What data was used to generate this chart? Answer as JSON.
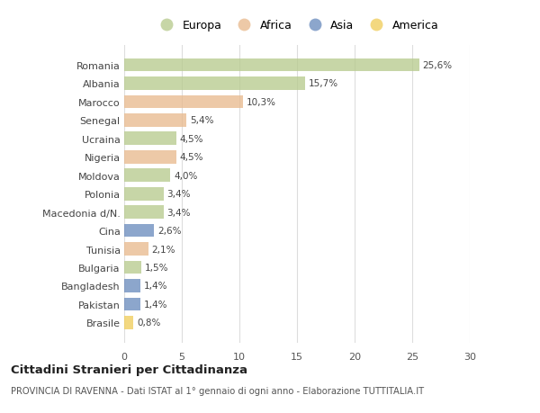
{
  "countries": [
    "Romania",
    "Albania",
    "Marocco",
    "Senegal",
    "Ucraina",
    "Nigeria",
    "Moldova",
    "Polonia",
    "Macedonia d/N.",
    "Cina",
    "Tunisia",
    "Bulgaria",
    "Bangladesh",
    "Pakistan",
    "Brasile"
  ],
  "values": [
    25.6,
    15.7,
    10.3,
    5.4,
    4.5,
    4.5,
    4.0,
    3.4,
    3.4,
    2.6,
    2.1,
    1.5,
    1.4,
    1.4,
    0.8
  ],
  "labels": [
    "25,6%",
    "15,7%",
    "10,3%",
    "5,4%",
    "4,5%",
    "4,5%",
    "4,0%",
    "3,4%",
    "3,4%",
    "2,6%",
    "2,1%",
    "1,5%",
    "1,4%",
    "1,4%",
    "0,8%"
  ],
  "regions": [
    "Europa",
    "Europa",
    "Africa",
    "Africa",
    "Europa",
    "Africa",
    "Europa",
    "Europa",
    "Europa",
    "Asia",
    "Africa",
    "Europa",
    "Asia",
    "Asia",
    "America"
  ],
  "colors": {
    "Europa": "#b5c98a",
    "Africa": "#e8b88a",
    "Asia": "#6688bb",
    "America": "#f0cc55"
  },
  "title": "Cittadini Stranieri per Cittadinanza",
  "subtitle": "PROVINCIA DI RAVENNA - Dati ISTAT al 1° gennaio di ogni anno - Elaborazione TUTTITALIA.IT",
  "xlim": [
    0,
    30
  ],
  "xticks": [
    0,
    5,
    10,
    15,
    20,
    25,
    30
  ],
  "background_color": "#ffffff",
  "grid_color": "#dddddd",
  "bar_alpha": 0.75,
  "legend_order": [
    "Europa",
    "Africa",
    "Asia",
    "America"
  ]
}
